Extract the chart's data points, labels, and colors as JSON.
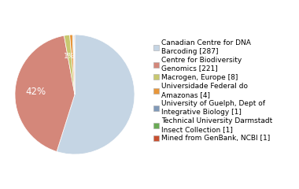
{
  "labels": [
    "Canadian Centre for DNA\nBarcoding [287]",
    "Centre for Biodiversity\nGenomics [221]",
    "Macrogen, Europe [8]",
    "Universidade Federal do\nAmazonas [4]",
    "University of Guelph, Dept of\nIntegrative Biology [1]",
    "Technical University Darmstadt\nInsect Collection [1]",
    "Mined from GenBank, NCBI [1]"
  ],
  "values": [
    287,
    221,
    8,
    4,
    1,
    1,
    1
  ],
  "colors": [
    "#c5d5e4",
    "#d4877a",
    "#c8c870",
    "#e8963a",
    "#8099b8",
    "#6aaa55",
    "#c85030"
  ],
  "startangle": 90,
  "background_color": "#ffffff",
  "legend_fontsize": 6.5,
  "pct_fontsize": 8.5,
  "figsize": [
    3.8,
    2.4
  ],
  "dpi": 100
}
